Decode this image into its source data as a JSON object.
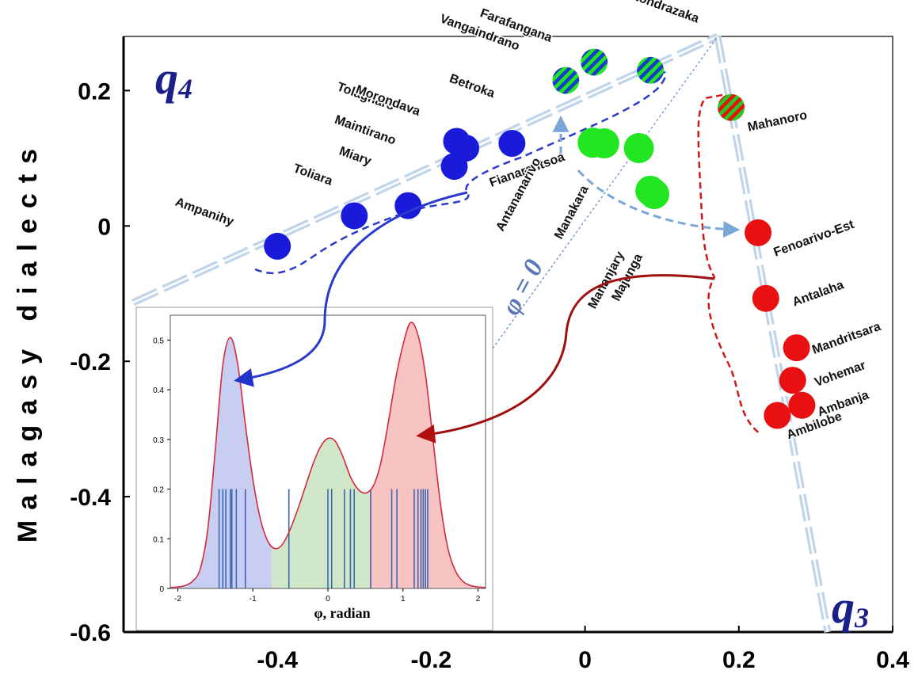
{
  "chart_data": [
    {
      "type": "scatter",
      "ylabel": "Malagasy dialects",
      "xlim": [
        -0.6,
        0.4
      ],
      "ylim": [
        -0.6,
        0.28
      ],
      "x_ticks": [
        "-0.4",
        "-0.2",
        "0",
        "0.2",
        "0.4"
      ],
      "y_ticks": [
        "0.2",
        "0",
        "-0.2",
        "-0.4",
        "-0.6"
      ],
      "annotations": {
        "q4": "q",
        "q4_sub": "4",
        "q3": "q",
        "q3_sub": "3",
        "phi_zero": "φ = 0"
      },
      "groups": {
        "blue": "#1a1adb",
        "green": "#22e622",
        "red": "#e81010",
        "striped_blue_green": [
          "#1a3ccc",
          "#22e622"
        ],
        "striped_red_green": [
          "#e81010",
          "#22cc22"
        ]
      },
      "points": [
        {
          "label": "Ampanihy",
          "x": -0.4,
          "y": -0.03,
          "group": "blue"
        },
        {
          "label": "Toliara",
          "x": -0.3,
          "y": 0.015,
          "group": "blue"
        },
        {
          "label": "Miary",
          "x": -0.23,
          "y": 0.03,
          "group": "blue"
        },
        {
          "label": "Maintirano",
          "x": -0.17,
          "y": 0.088,
          "group": "blue"
        },
        {
          "label": "Tolagnaro",
          "x": -0.167,
          "y": 0.125,
          "group": "blue"
        },
        {
          "label": "Morondava",
          "x": -0.155,
          "y": 0.115,
          "group": "blue"
        },
        {
          "label": "Betroka",
          "x": -0.095,
          "y": 0.122,
          "group": "blue"
        },
        {
          "label": "Vangaindrano",
          "x": -0.025,
          "y": 0.215,
          "group": "striped_blue_green"
        },
        {
          "label": "Farafangana",
          "x": 0.012,
          "y": 0.242,
          "group": "striped_blue_green"
        },
        {
          "label": "Ambatondrazaka",
          "x": 0.085,
          "y": 0.23,
          "group": "striped_blue_green"
        },
        {
          "label": "Fianarantsoa",
          "x": 0.01,
          "y": 0.123,
          "group": "green"
        },
        {
          "label": "Antananarivo",
          "x": 0.025,
          "y": 0.122,
          "group": "green"
        },
        {
          "label": "Manakara",
          "x": 0.07,
          "y": 0.115,
          "group": "green"
        },
        {
          "label": "Mananjary",
          "x": 0.085,
          "y": 0.052,
          "group": "green"
        },
        {
          "label": "Majunga",
          "x": 0.09,
          "y": 0.047,
          "group": "green"
        },
        {
          "label": "Mahanoro",
          "x": 0.19,
          "y": 0.175,
          "group": "striped_red_green"
        },
        {
          "label": "Fenoarivo-Est",
          "x": 0.225,
          "y": -0.01,
          "group": "red"
        },
        {
          "label": "Antalaha",
          "x": 0.235,
          "y": -0.107,
          "group": "red"
        },
        {
          "label": "Mandritsara",
          "x": 0.275,
          "y": -0.18,
          "group": "red"
        },
        {
          "label": "Vohemar",
          "x": 0.27,
          "y": -0.228,
          "group": "red"
        },
        {
          "label": "Ambanja",
          "x": 0.282,
          "y": -0.265,
          "group": "red"
        },
        {
          "label": "Ambilobe",
          "x": 0.25,
          "y": -0.28,
          "group": "red"
        }
      ]
    },
    {
      "type": "area",
      "xlabel": "φ, radian",
      "xlim": [
        -2.1,
        2.1
      ],
      "ylim": [
        0,
        0.55
      ],
      "x_ticks": [
        "-2",
        "-1",
        "0",
        "1",
        "2"
      ],
      "y_ticks": [
        "0",
        "0.1",
        "0.2",
        "0.3",
        "0.4",
        "0.5"
      ],
      "density_curve": [
        [
          -2.1,
          0.002
        ],
        [
          -2.0,
          0.003
        ],
        [
          -1.9,
          0.006
        ],
        [
          -1.8,
          0.015
        ],
        [
          -1.7,
          0.04
        ],
        [
          -1.6,
          0.12
        ],
        [
          -1.5,
          0.28
        ],
        [
          -1.4,
          0.45
        ],
        [
          -1.3,
          0.505
        ],
        [
          -1.2,
          0.45
        ],
        [
          -1.1,
          0.33
        ],
        [
          -1.0,
          0.22
        ],
        [
          -0.9,
          0.14
        ],
        [
          -0.8,
          0.095
        ],
        [
          -0.7,
          0.08
        ],
        [
          -0.6,
          0.09
        ],
        [
          -0.5,
          0.12
        ],
        [
          -0.4,
          0.16
        ],
        [
          -0.3,
          0.205
        ],
        [
          -0.2,
          0.25
        ],
        [
          -0.1,
          0.285
        ],
        [
          0.0,
          0.302
        ],
        [
          0.1,
          0.296
        ],
        [
          0.2,
          0.265
        ],
        [
          0.3,
          0.225
        ],
        [
          0.4,
          0.2
        ],
        [
          0.5,
          0.192
        ],
        [
          0.6,
          0.205
        ],
        [
          0.7,
          0.25
        ],
        [
          0.8,
          0.33
        ],
        [
          0.9,
          0.42
        ],
        [
          1.0,
          0.49
        ],
        [
          1.1,
          0.535
        ],
        [
          1.2,
          0.51
        ],
        [
          1.3,
          0.43
        ],
        [
          1.4,
          0.3
        ],
        [
          1.5,
          0.17
        ],
        [
          1.6,
          0.08
        ],
        [
          1.7,
          0.035
        ],
        [
          1.8,
          0.014
        ],
        [
          1.9,
          0.006
        ],
        [
          2.0,
          0.003
        ],
        [
          2.1,
          0.002
        ]
      ],
      "regions": [
        {
          "from": -2.1,
          "to": -0.75,
          "color": "#c8cdf2"
        },
        {
          "from": -0.75,
          "to": 0.55,
          "color": "#cfe6c9"
        },
        {
          "from": 0.55,
          "to": 2.1,
          "color": "#f7c3c3"
        }
      ],
      "rug_height": 0.2,
      "rug": [
        -1.45,
        -1.4,
        -1.36,
        -1.3,
        -1.28,
        -1.22,
        -1.1,
        -0.52,
        0.0,
        0.05,
        0.22,
        0.3,
        0.35,
        0.57,
        0.85,
        0.92,
        1.15,
        1.2,
        1.24,
        1.27,
        1.3,
        1.33
      ]
    }
  ]
}
